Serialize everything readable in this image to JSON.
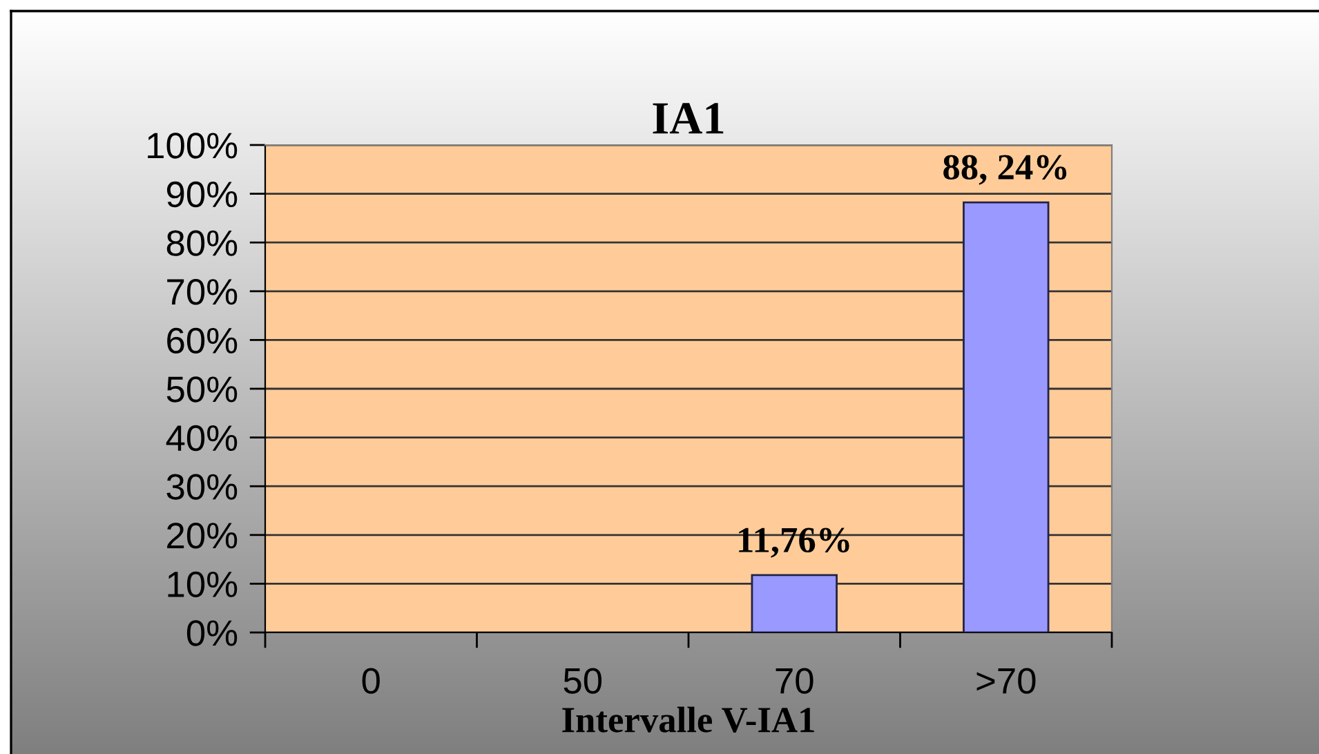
{
  "chart_data": {
    "type": "bar",
    "title": "IA1",
    "xlabel": "Intervalle V-IA1",
    "categories": [
      "0",
      "50",
      "70",
      ">70"
    ],
    "values": [
      0,
      0,
      11.76,
      88.24
    ],
    "color": "#9999ff",
    "value_labels": [
      null,
      null,
      "11,76%",
      "88, 24%"
    ],
    "ylim": [
      0,
      100
    ],
    "yticks": [
      {
        "value": 0,
        "label": "0%"
      },
      {
        "value": 10,
        "label": "10%"
      },
      {
        "value": 20,
        "label": "20%"
      },
      {
        "value": 30,
        "label": "30%"
      },
      {
        "value": 40,
        "label": "40%"
      },
      {
        "value": 50,
        "label": "50%"
      },
      {
        "value": 60,
        "label": "60%"
      },
      {
        "value": 70,
        "label": "70%"
      },
      {
        "value": 80,
        "label": "80%"
      },
      {
        "value": 90,
        "label": "90%"
      },
      {
        "value": 100,
        "label": "100%"
      }
    ],
    "grid": "y"
  }
}
